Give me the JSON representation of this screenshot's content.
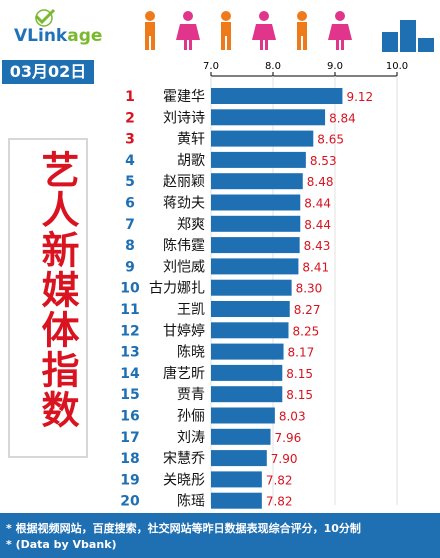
{
  "brand": {
    "part1": "VLink",
    "part2": "age"
  },
  "date": "03月02日",
  "title": "艺人新媒体指数",
  "footer": {
    "line1": "* 根据视频网站，百度搜索，社交网站等昨日数据表现综合评分，10分制",
    "line2": "* (Data by Vbank)"
  },
  "colors": {
    "bar": "#1f6fb3",
    "rank_top": "#d9131f",
    "rank": "#1f6fb3",
    "value": "#d9131f"
  },
  "chart_data": {
    "type": "bar",
    "orientation": "horizontal",
    "axis_ticks": [
      "7.0",
      "8.0",
      "9.0",
      "10.0"
    ],
    "xlim": [
      7.0,
      10.0
    ],
    "categories": [
      "霍建华",
      "刘诗诗",
      "黄轩",
      "胡歌",
      "赵丽颖",
      "蒋劲夫",
      "郑爽",
      "陈伟霆",
      "刘恺威",
      "古力娜扎",
      "王凯",
      "甘婷婷",
      "陈晓",
      "唐艺昕",
      "贾青",
      "孙俪",
      "刘涛",
      "宋慧乔",
      "关晓彤",
      "陈瑶"
    ],
    "ranks": [
      "1",
      "2",
      "3",
      "4",
      "5",
      "6",
      "7",
      "8",
      "9",
      "10",
      "11",
      "12",
      "13",
      "14",
      "15",
      "16",
      "17",
      "18",
      "19",
      "20"
    ],
    "values": [
      9.12,
      8.84,
      8.65,
      8.53,
      8.48,
      8.44,
      8.44,
      8.43,
      8.41,
      8.3,
      8.27,
      8.25,
      8.17,
      8.15,
      8.15,
      8.03,
      7.96,
      7.9,
      7.82,
      7.82
    ],
    "value_labels": [
      "9.12",
      "8.84",
      "8.65",
      "8.53",
      "8.48",
      "8.44",
      "8.44",
      "8.43",
      "8.41",
      "8.30",
      "8.27",
      "8.25",
      "8.17",
      "8.15",
      "8.15",
      "8.03",
      "7.96",
      "7.90",
      "7.82",
      "7.82"
    ]
  }
}
